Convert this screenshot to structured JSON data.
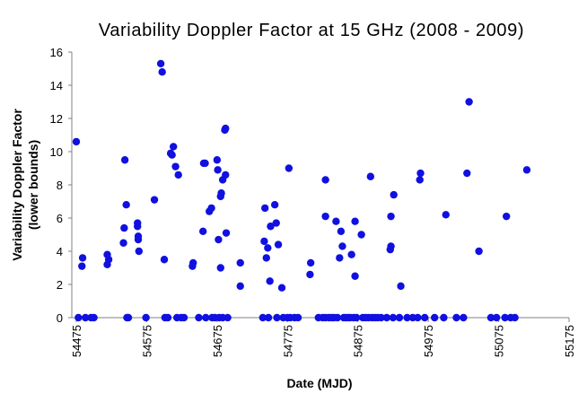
{
  "chart_data": {
    "type": "scatter",
    "title": "Variability Doppler Factor at 15 GHz (2008 - 2009)",
    "xlabel": "Date (MJD)",
    "ylabel_lines": [
      "Variability Doppler Factor",
      "(lower bounds)"
    ],
    "xlim": [
      54475,
      55175
    ],
    "ylim": [
      0,
      16
    ],
    "xticks": [
      54475,
      54575,
      54675,
      54775,
      54875,
      54975,
      55075,
      55175
    ],
    "yticks": [
      0,
      2,
      4,
      6,
      8,
      10,
      12,
      14,
      16
    ],
    "grid": false,
    "legend": "none",
    "marker_color": "#1010e0",
    "series": [
      {
        "points": [
          [
            54475,
            10.6
          ],
          [
            54478,
            0
          ],
          [
            54483,
            3.1
          ],
          [
            54484,
            3.6
          ],
          [
            54488,
            0
          ],
          [
            54496,
            0
          ],
          [
            54500,
            0
          ],
          [
            54519,
            3.2
          ],
          [
            54519,
            3.8
          ],
          [
            54521,
            3.5
          ],
          [
            54542,
            4.5
          ],
          [
            54543,
            5.4
          ],
          [
            54544,
            9.5
          ],
          [
            54546,
            6.8
          ],
          [
            54547,
            0
          ],
          [
            54549,
            0
          ],
          [
            54562,
            5.7
          ],
          [
            54562,
            5.5
          ],
          [
            54563,
            4.9
          ],
          [
            54563,
            4.7
          ],
          [
            54564,
            4.0
          ],
          [
            54574,
            0
          ],
          [
            54586,
            7.1
          ],
          [
            54595,
            15.3
          ],
          [
            54597,
            14.8
          ],
          [
            54600,
            3.5
          ],
          [
            54601,
            0
          ],
          [
            54605,
            0
          ],
          [
            54609,
            9.9
          ],
          [
            54611,
            9.8
          ],
          [
            54613,
            10.3
          ],
          [
            54616,
            9.1
          ],
          [
            54618,
            0
          ],
          [
            54620,
            8.6
          ],
          [
            54624,
            0
          ],
          [
            54628,
            0
          ],
          [
            54640,
            3.1
          ],
          [
            54641,
            3.3
          ],
          [
            54649,
            0
          ],
          [
            54655,
            5.2
          ],
          [
            54656,
            9.3
          ],
          [
            54658,
            9.3
          ],
          [
            54659,
            0
          ],
          [
            54664,
            6.4
          ],
          [
            54667,
            6.6
          ],
          [
            54668,
            0
          ],
          [
            54672,
            0
          ],
          [
            54675,
            9.5
          ],
          [
            54676,
            8.9
          ],
          [
            54677,
            4.7
          ],
          [
            54678,
            0
          ],
          [
            54680,
            3.0
          ],
          [
            54680,
            7.3
          ],
          [
            54681,
            7.5
          ],
          [
            54683,
            8.3
          ],
          [
            54683,
            0
          ],
          [
            54686,
            11.3
          ],
          [
            54687,
            11.4
          ],
          [
            54687,
            8.6
          ],
          [
            54688,
            5.1
          ],
          [
            54690,
            0
          ],
          [
            54708,
            3.3
          ],
          [
            54708,
            1.9
          ],
          [
            54740,
            0
          ],
          [
            54742,
            4.6
          ],
          [
            54743,
            6.6
          ],
          [
            54745,
            3.6
          ],
          [
            54747,
            4.2
          ],
          [
            54748,
            0
          ],
          [
            54750,
            2.2
          ],
          [
            54751,
            5.5
          ],
          [
            54757,
            6.8
          ],
          [
            54759,
            5.7
          ],
          [
            54760,
            0
          ],
          [
            54762,
            4.4
          ],
          [
            54767,
            1.8
          ],
          [
            54769,
            0
          ],
          [
            54775,
            0
          ],
          [
            54777,
            9.0
          ],
          [
            54779,
            0
          ],
          [
            54785,
            0
          ],
          [
            54790,
            0
          ],
          [
            54807,
            2.6
          ],
          [
            54808,
            3.3
          ],
          [
            54819,
            0
          ],
          [
            54825,
            0
          ],
          [
            54829,
            8.3
          ],
          [
            54829,
            0
          ],
          [
            54829,
            6.1
          ],
          [
            54834,
            0
          ],
          [
            54838,
            0
          ],
          [
            54841,
            0
          ],
          [
            54844,
            5.8
          ],
          [
            54846,
            0
          ],
          [
            54849,
            3.6
          ],
          [
            54851,
            5.2
          ],
          [
            54853,
            4.3
          ],
          [
            54855,
            0
          ],
          [
            54858,
            0
          ],
          [
            54861,
            0
          ],
          [
            54864,
            0
          ],
          [
            54866,
            3.8
          ],
          [
            54869,
            0
          ],
          [
            54871,
            2.5
          ],
          [
            54871,
            5.8
          ],
          [
            54873,
            0
          ],
          [
            54880,
            5.0
          ],
          [
            54882,
            0
          ],
          [
            54886,
            0
          ],
          [
            54890,
            0
          ],
          [
            54893,
            8.5
          ],
          [
            54895,
            0
          ],
          [
            54899,
            0
          ],
          [
            54903,
            0
          ],
          [
            54908,
            0
          ],
          [
            54916,
            0
          ],
          [
            54921,
            4.1
          ],
          [
            54922,
            4.3
          ],
          [
            54922,
            6.1
          ],
          [
            54925,
            0
          ],
          [
            54926,
            7.4
          ],
          [
            54934,
            0
          ],
          [
            54936,
            1.9
          ],
          [
            54945,
            0
          ],
          [
            54953,
            0
          ],
          [
            54960,
            0
          ],
          [
            54963,
            8.3
          ],
          [
            54964,
            8.7
          ],
          [
            54970,
            0
          ],
          [
            54984,
            0
          ],
          [
            54997,
            0
          ],
          [
            55000,
            6.2
          ],
          [
            55015,
            0
          ],
          [
            55025,
            0
          ],
          [
            55030,
            8.7
          ],
          [
            55033,
            13.0
          ],
          [
            55047,
            4.0
          ],
          [
            55064,
            0
          ],
          [
            55072,
            0
          ],
          [
            55084,
            0
          ],
          [
            55086,
            6.1
          ],
          [
            55092,
            0
          ],
          [
            55098,
            0
          ],
          [
            55115,
            8.9
          ]
        ]
      }
    ]
  }
}
